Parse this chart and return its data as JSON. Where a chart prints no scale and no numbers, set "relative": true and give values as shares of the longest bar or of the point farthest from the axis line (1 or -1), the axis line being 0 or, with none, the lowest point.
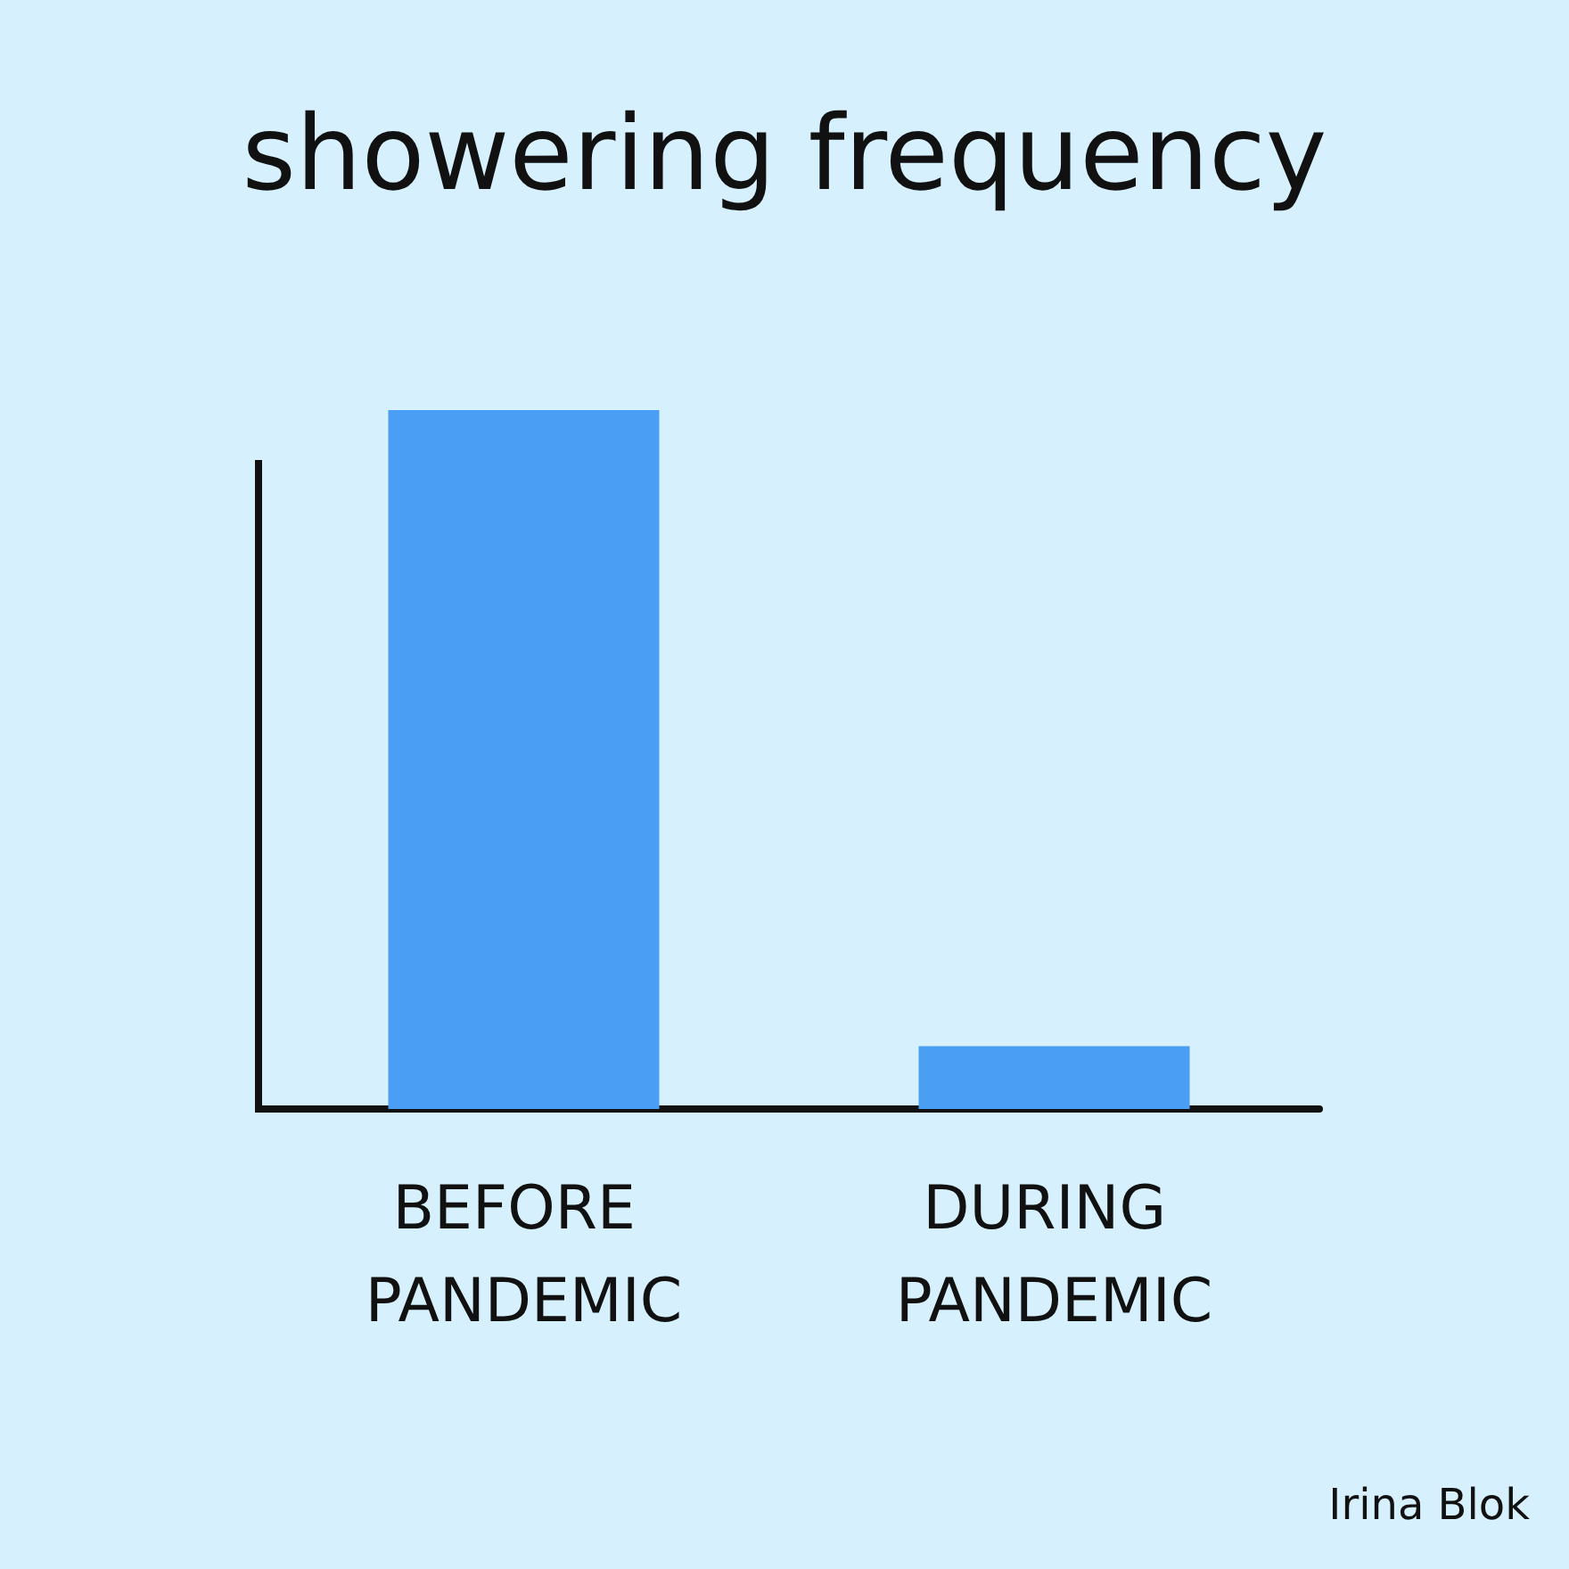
{
  "chart_data": {
    "type": "bar",
    "title": "showering frequency",
    "categories": [
      "BEFORE PANDEMIC",
      "DURING PANDEMIC"
    ],
    "values": [
      1,
      0.09
    ],
    "color": "#4a9ff5",
    "relative": true,
    "grid": false,
    "annotations": [
      "Irina Blok"
    ]
  }
}
